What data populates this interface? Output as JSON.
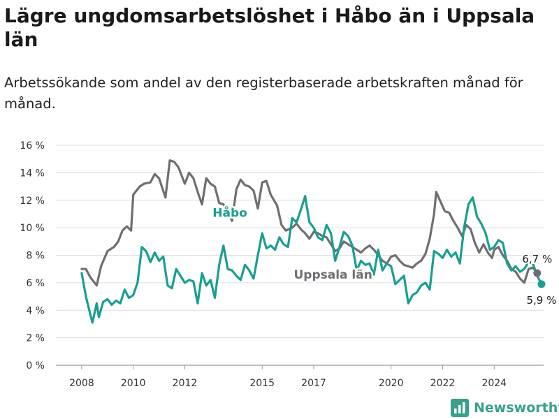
{
  "title": "Lägre ungdomsarbetslöshet i Håbo än i Uppsala län",
  "subtitle": "Arbetssökande som andel av den registerbaserade arbetskraften månad för månad.",
  "brand": {
    "name": "Newsworthy",
    "icon": "bar-chart-logo-icon"
  },
  "chart_data": {
    "type": "line",
    "xlabel": "",
    "ylabel": "",
    "y_ticks": [
      "0 %",
      "2 %",
      "4 %",
      "6 %",
      "8 %",
      "10 %",
      "12 %",
      "14 %",
      "16 %"
    ],
    "x_ticks": [
      "2008",
      "2010",
      "2012",
      "2015",
      "2017",
      "2020",
      "2022",
      "2024"
    ],
    "ylim": [
      0,
      16
    ],
    "xlim": [
      "2007-01",
      "2025-12"
    ],
    "grid": true,
    "legend": "inline labels on lines",
    "series": [
      {
        "name": "Uppsala län",
        "color": "#6f6e73",
        "label_point": [
          "2017-10",
          6.6
        ],
        "end_label": "6,7 %",
        "points": [
          [
            "2008-01",
            7.0
          ],
          [
            "2008-03",
            7.0
          ],
          [
            "2008-05",
            6.4
          ],
          [
            "2008-08",
            5.8
          ],
          [
            "2008-10",
            7.2
          ],
          [
            "2009-01",
            8.3
          ],
          [
            "2009-04",
            8.6
          ],
          [
            "2009-06",
            9.0
          ],
          [
            "2009-08",
            9.8
          ],
          [
            "2009-10",
            10.1
          ],
          [
            "2009-12",
            9.8
          ],
          [
            "2010-01",
            12.4
          ],
          [
            "2010-04",
            13.0
          ],
          [
            "2010-06",
            13.2
          ],
          [
            "2010-09",
            13.3
          ],
          [
            "2010-11",
            13.9
          ],
          [
            "2011-01",
            13.6
          ],
          [
            "2011-04",
            12.2
          ],
          [
            "2011-06",
            14.9
          ],
          [
            "2011-08",
            14.8
          ],
          [
            "2011-10",
            14.4
          ],
          [
            "2012-01",
            13.2
          ],
          [
            "2012-03",
            14.0
          ],
          [
            "2012-05",
            13.6
          ],
          [
            "2012-07",
            12.6
          ],
          [
            "2012-09",
            11.7
          ],
          [
            "2012-11",
            13.6
          ],
          [
            "2013-01",
            13.2
          ],
          [
            "2013-03",
            13.0
          ],
          [
            "2013-05",
            11.8
          ],
          [
            "2013-07",
            11.7
          ],
          [
            "2013-09",
            11.2
          ],
          [
            "2013-11",
            10.5
          ],
          [
            "2014-01",
            12.8
          ],
          [
            "2014-03",
            13.5
          ],
          [
            "2014-05",
            13.1
          ],
          [
            "2014-07",
            13.0
          ],
          [
            "2014-09",
            12.7
          ],
          [
            "2014-11",
            11.4
          ],
          [
            "2015-01",
            13.3
          ],
          [
            "2015-03",
            13.4
          ],
          [
            "2015-05",
            12.4
          ],
          [
            "2015-08",
            11.6
          ],
          [
            "2015-10",
            10.2
          ],
          [
            "2015-12",
            9.8
          ],
          [
            "2016-03",
            10.0
          ],
          [
            "2016-05",
            10.3
          ],
          [
            "2016-07",
            9.9
          ],
          [
            "2016-09",
            9.6
          ],
          [
            "2016-11",
            9.2
          ],
          [
            "2017-01",
            9.7
          ],
          [
            "2017-03",
            9.6
          ],
          [
            "2017-05",
            9.4
          ],
          [
            "2017-07",
            9.3
          ],
          [
            "2017-09",
            8.8
          ],
          [
            "2017-11",
            8.3
          ],
          [
            "2018-01",
            8.5
          ],
          [
            "2018-03",
            9.0
          ],
          [
            "2018-05",
            8.8
          ],
          [
            "2018-07",
            8.6
          ],
          [
            "2018-09",
            8.4
          ],
          [
            "2018-11",
            8.2
          ],
          [
            "2019-01",
            8.5
          ],
          [
            "2019-03",
            8.7
          ],
          [
            "2019-05",
            8.4
          ],
          [
            "2019-07",
            8.0
          ],
          [
            "2019-09",
            7.6
          ],
          [
            "2019-11",
            7.4
          ],
          [
            "2020-01",
            7.9
          ],
          [
            "2020-03",
            8.0
          ],
          [
            "2020-05",
            7.6
          ],
          [
            "2020-07",
            7.3
          ],
          [
            "2020-09",
            7.2
          ],
          [
            "2020-11",
            7.1
          ],
          [
            "2021-01",
            7.4
          ],
          [
            "2021-03",
            7.6
          ],
          [
            "2021-05",
            8.1
          ],
          [
            "2021-07",
            9.2
          ],
          [
            "2021-09",
            11.0
          ],
          [
            "2021-10",
            12.6
          ],
          [
            "2021-12",
            11.9
          ],
          [
            "2022-02",
            11.2
          ],
          [
            "2022-04",
            11.1
          ],
          [
            "2022-06",
            10.5
          ],
          [
            "2022-08",
            10.0
          ],
          [
            "2022-10",
            9.4
          ],
          [
            "2022-12",
            10.2
          ],
          [
            "2023-02",
            9.9
          ],
          [
            "2023-04",
            8.9
          ],
          [
            "2023-06",
            8.2
          ],
          [
            "2023-08",
            8.8
          ],
          [
            "2023-10",
            8.2
          ],
          [
            "2023-12",
            7.8
          ],
          [
            "2024-01",
            8.4
          ],
          [
            "2024-03",
            8.6
          ],
          [
            "2024-05",
            8.0
          ],
          [
            "2024-07",
            7.6
          ],
          [
            "2024-09",
            7.0
          ],
          [
            "2024-11",
            6.8
          ],
          [
            "2025-01",
            6.3
          ],
          [
            "2025-03",
            6.0
          ],
          [
            "2025-05",
            7.0
          ],
          [
            "2025-07",
            7.1
          ],
          [
            "2025-09",
            6.7
          ]
        ]
      },
      {
        "name": "Håbo",
        "color": "#1a9e8f",
        "label_point": [
          "2013-10",
          11.1
        ],
        "end_label": "5,9 %",
        "points": [
          [
            "2008-01",
            6.7
          ],
          [
            "2008-03",
            5.0
          ],
          [
            "2008-05",
            3.7
          ],
          [
            "2008-06",
            3.1
          ],
          [
            "2008-08",
            4.5
          ],
          [
            "2008-09",
            3.5
          ],
          [
            "2008-11",
            4.6
          ],
          [
            "2009-01",
            4.8
          ],
          [
            "2009-03",
            4.4
          ],
          [
            "2009-05",
            4.7
          ],
          [
            "2009-07",
            4.5
          ],
          [
            "2009-09",
            5.5
          ],
          [
            "2009-11",
            4.9
          ],
          [
            "2010-01",
            5.1
          ],
          [
            "2010-03",
            6.0
          ],
          [
            "2010-05",
            8.6
          ],
          [
            "2010-07",
            8.3
          ],
          [
            "2010-09",
            7.5
          ],
          [
            "2010-11",
            8.2
          ],
          [
            "2011-01",
            7.6
          ],
          [
            "2011-03",
            7.9
          ],
          [
            "2011-05",
            5.8
          ],
          [
            "2011-07",
            5.6
          ],
          [
            "2011-09",
            7.0
          ],
          [
            "2011-11",
            6.5
          ],
          [
            "2012-01",
            6.0
          ],
          [
            "2012-03",
            6.2
          ],
          [
            "2012-05",
            6.1
          ],
          [
            "2012-07",
            4.5
          ],
          [
            "2012-09",
            6.7
          ],
          [
            "2012-11",
            5.8
          ],
          [
            "2013-01",
            6.2
          ],
          [
            "2013-03",
            4.9
          ],
          [
            "2013-05",
            7.3
          ],
          [
            "2013-07",
            8.7
          ],
          [
            "2013-09",
            7.0
          ],
          [
            "2013-11",
            6.9
          ],
          [
            "2014-01",
            6.5
          ],
          [
            "2014-03",
            6.2
          ],
          [
            "2014-05",
            7.3
          ],
          [
            "2014-07",
            6.9
          ],
          [
            "2014-09",
            6.3
          ],
          [
            "2014-11",
            8.0
          ],
          [
            "2015-01",
            9.6
          ],
          [
            "2015-03",
            8.5
          ],
          [
            "2015-05",
            8.7
          ],
          [
            "2015-07",
            8.4
          ],
          [
            "2015-09",
            9.3
          ],
          [
            "2015-11",
            8.8
          ],
          [
            "2016-01",
            8.6
          ],
          [
            "2016-03",
            10.7
          ],
          [
            "2016-05",
            10.4
          ],
          [
            "2016-07",
            11.3
          ],
          [
            "2016-09",
            12.3
          ],
          [
            "2016-11",
            10.4
          ],
          [
            "2017-01",
            10.0
          ],
          [
            "2017-03",
            9.3
          ],
          [
            "2017-05",
            9.1
          ],
          [
            "2017-07",
            10.2
          ],
          [
            "2017-09",
            9.6
          ],
          [
            "2017-11",
            7.6
          ],
          [
            "2018-01",
            8.6
          ],
          [
            "2018-03",
            9.7
          ],
          [
            "2018-05",
            9.4
          ],
          [
            "2018-07",
            8.7
          ],
          [
            "2018-09",
            6.9
          ],
          [
            "2018-11",
            7.6
          ],
          [
            "2019-01",
            7.3
          ],
          [
            "2019-03",
            7.4
          ],
          [
            "2019-05",
            6.6
          ],
          [
            "2019-07",
            8.4
          ],
          [
            "2019-09",
            6.9
          ],
          [
            "2019-11",
            7.4
          ],
          [
            "2020-01",
            7.2
          ],
          [
            "2020-03",
            5.9
          ],
          [
            "2020-05",
            6.2
          ],
          [
            "2020-07",
            6.5
          ],
          [
            "2020-09",
            4.5
          ],
          [
            "2020-11",
            5.1
          ],
          [
            "2021-01",
            5.3
          ],
          [
            "2021-03",
            5.8
          ],
          [
            "2021-05",
            6.0
          ],
          [
            "2021-07",
            5.5
          ],
          [
            "2021-09",
            8.3
          ],
          [
            "2021-11",
            8.1
          ],
          [
            "2022-01",
            7.8
          ],
          [
            "2022-03",
            8.4
          ],
          [
            "2022-05",
            7.9
          ],
          [
            "2022-07",
            8.2
          ],
          [
            "2022-09",
            7.4
          ],
          [
            "2022-11",
            10.0
          ],
          [
            "2023-01",
            11.7
          ],
          [
            "2023-03",
            12.2
          ],
          [
            "2023-05",
            10.8
          ],
          [
            "2023-07",
            10.3
          ],
          [
            "2023-09",
            9.6
          ],
          [
            "2023-11",
            8.4
          ],
          [
            "2024-01",
            8.6
          ],
          [
            "2024-03",
            9.1
          ],
          [
            "2024-05",
            8.9
          ],
          [
            "2024-07",
            7.4
          ],
          [
            "2024-09",
            6.9
          ],
          [
            "2024-11",
            7.2
          ],
          [
            "2025-01",
            6.8
          ],
          [
            "2025-03",
            7.0
          ],
          [
            "2025-05",
            7.5
          ],
          [
            "2025-07",
            7.4
          ],
          [
            "2025-09",
            6.5
          ],
          [
            "2025-11",
            5.9
          ]
        ]
      }
    ]
  }
}
